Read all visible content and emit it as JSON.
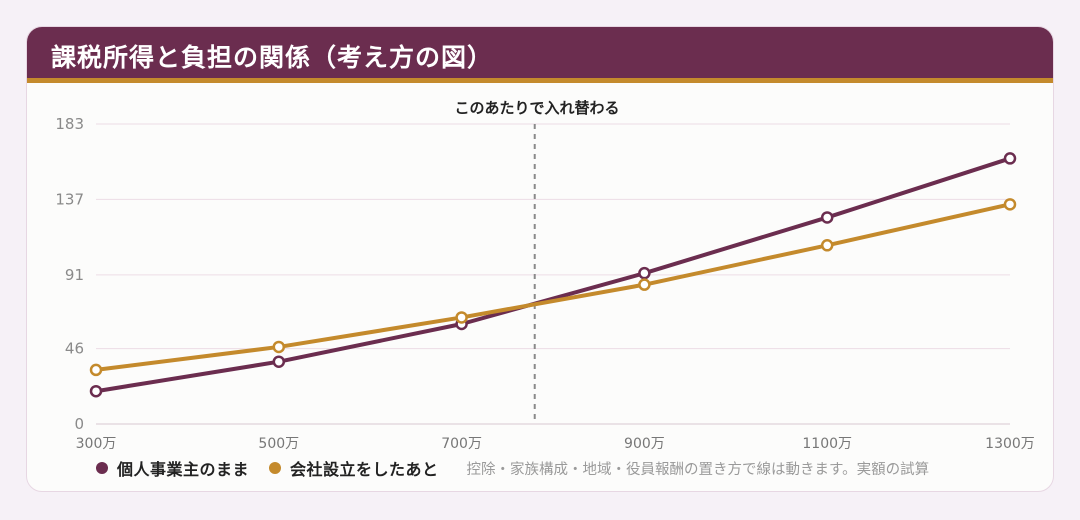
{
  "title": "課税所得と負担の関係（考え方の図）",
  "note": "控除・家族構成・地域・役員報酬の置き方で線は動きます。実額の試算",
  "colors": {
    "personal": "#6b2d4f",
    "corporate": "#c48a2c",
    "header": "#6b2d4f",
    "accent": "#c48a2c"
  },
  "chart_data": {
    "type": "line",
    "categories": [
      "300万",
      "500万",
      "700万",
      "900万",
      "1100万",
      "1300万"
    ],
    "x": [
      300,
      500,
      700,
      900,
      1100,
      1300
    ],
    "y_ticks": [
      0,
      46,
      91,
      137,
      183
    ],
    "ylim": [
      0,
      183
    ],
    "xlim": [
      300,
      1300
    ],
    "grid": true,
    "legend_position": "bottom-left",
    "series": [
      {
        "name": "個人事業主のまま",
        "color": "#6b2d4f",
        "values": [
          20,
          38,
          61,
          92,
          126,
          162
        ]
      },
      {
        "name": "会社設立をしたあと",
        "color": "#c48a2c",
        "values": [
          33,
          47,
          65,
          85,
          109,
          134
        ]
      }
    ],
    "annotation": {
      "text": "このあたりで入れ替わる",
      "x": 780
    }
  }
}
